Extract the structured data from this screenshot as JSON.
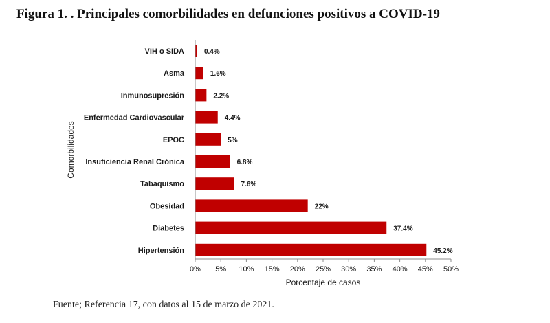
{
  "figure": {
    "title": "Figura 1. . Principales comorbilidades en defunciones positivos a COVID-19",
    "source": "Fuente; Referencia 17, con datos al 15 de marzo de 2021."
  },
  "chart_data": {
    "type": "bar",
    "orientation": "horizontal",
    "categories": [
      "VIH o SIDA",
      "Asma",
      "Inmunosupresión",
      "Enfermedad Cardiovascular",
      "EPOC",
      "Insuficiencia Renal Crónica",
      "Tabaquismo",
      "Obesidad",
      "Diabetes",
      "Hipertensión"
    ],
    "values": [
      0.4,
      1.6,
      2.2,
      4.4,
      5,
      6.8,
      7.6,
      22,
      37.4,
      45.2
    ],
    "data_labels": [
      "0.4%",
      "1.6%",
      "2.2%",
      "4.4%",
      "5%",
      "6.8%",
      "7.6%",
      "22%",
      "37.4%",
      "45.2%"
    ],
    "xlabel": "Porcentaje de casos",
    "ylabel": "Comorbilidades",
    "xlim": [
      0,
      50
    ],
    "x_ticks": [
      "0%",
      "5%",
      "10%",
      "15%",
      "20%",
      "25%",
      "30%",
      "35%",
      "40%",
      "45%",
      "50%"
    ],
    "grid": false,
    "legend": "none",
    "bar_color": "#c00000"
  }
}
